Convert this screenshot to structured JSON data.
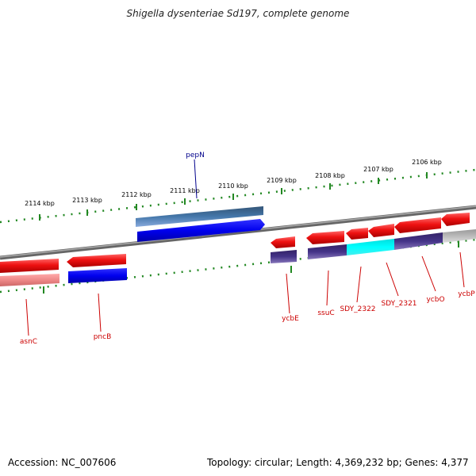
{
  "title": "Shigella dysenteriae Sd197, complete genome",
  "footer": {
    "accession": "Accession: NC_007606",
    "summary": "Topology: circular; Length: 4,369,232 bp; Genes: 4,377"
  },
  "ticks": [
    "2114 kbp",
    "2113 kbp",
    "2112 kbp",
    "2111 kbp",
    "2110 kbp",
    "2109 kbp",
    "2108 kbp",
    "2107 kbp",
    "2106 kbp"
  ],
  "genes": [
    {
      "name": "pepN",
      "label_color": "#00008b"
    },
    {
      "name": "asnC",
      "label_color": "#cc0000"
    },
    {
      "name": "pncB",
      "label_color": "#cc0000"
    },
    {
      "name": "ycbE",
      "label_color": "#cc0000"
    },
    {
      "name": "ssuC",
      "label_color": "#cc0000"
    },
    {
      "name": "SDY_2322",
      "label_color": "#cc0000"
    },
    {
      "name": "SDY_2321",
      "label_color": "#cc0000"
    },
    {
      "name": "ycbO",
      "label_color": "#cc0000"
    },
    {
      "name": "ycbP",
      "label_color": "#cc0000"
    }
  ],
  "colors": {
    "cds_red": "#ee1111",
    "cds_blue": "#0000ee",
    "rna_steel": "#4477aa",
    "pink": "#ee8888",
    "navy": "#443388",
    "cyan": "#00eeee",
    "gray": "#bbbbbb",
    "tick_green": "#228822",
    "backbone": "#888888"
  }
}
